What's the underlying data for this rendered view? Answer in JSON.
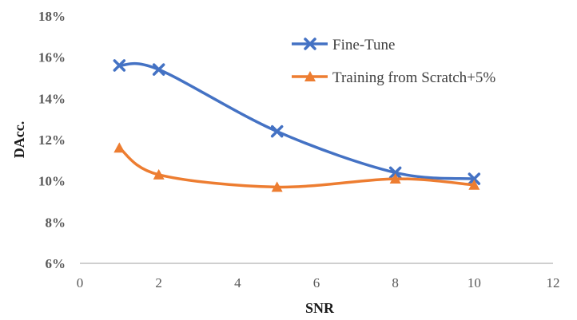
{
  "chart_data": {
    "type": "line",
    "title": "",
    "xlabel": "SNR",
    "ylabel": "DAcc.",
    "xlim": [
      0,
      12
    ],
    "ylim": [
      6,
      18
    ],
    "x_ticks": [
      "0",
      "2",
      "4",
      "6",
      "8",
      "10",
      "12"
    ],
    "y_ticks": [
      "6%",
      "8%",
      "10%",
      "12%",
      "14%",
      "16%",
      "18%"
    ],
    "grid": false,
    "legend_position": "top-right",
    "series": [
      {
        "name": "Fine-Tune",
        "color": "#4472C4",
        "marker": "x",
        "x": [
          1,
          2,
          5,
          8,
          10
        ],
        "y": [
          15.6,
          15.4,
          12.4,
          10.4,
          10.1
        ]
      },
      {
        "name": "Training from Scratch+5%",
        "color": "#ED7D31",
        "marker": "triangle",
        "x": [
          1,
          2,
          5,
          8,
          10
        ],
        "y": [
          11.6,
          10.3,
          9.7,
          10.1,
          9.8
        ]
      }
    ]
  }
}
